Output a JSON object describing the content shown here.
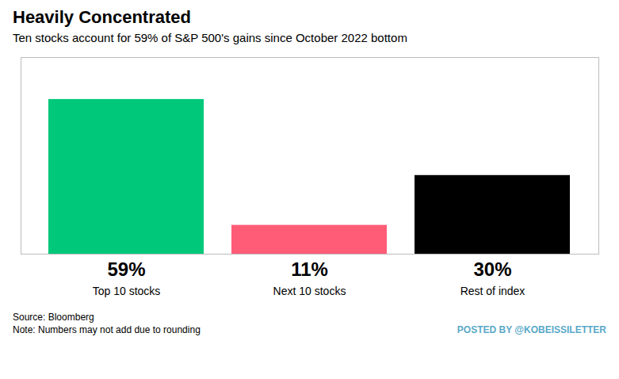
{
  "chart_data": {
    "type": "bar",
    "title": "Heavily Concentrated",
    "subtitle": "Ten stocks account for 59% of S&P 500's gains since October 2022 bottom",
    "categories": [
      "Top 10 stocks",
      "Next 10 stocks",
      "Rest of index"
    ],
    "values": [
      59,
      11,
      30
    ],
    "value_labels": [
      "59%",
      "11%",
      "30%"
    ],
    "data_labels": true,
    "colors": [
      "#00C87A",
      "#FF5C78",
      "#000000"
    ],
    "ylim": [
      0,
      75
    ],
    "tick_labels": false,
    "source": "Source: Bloomberg\nNote: Numbers may not add due to rounding",
    "watermark": "POSTED BY @KOBEISSILETTER"
  }
}
